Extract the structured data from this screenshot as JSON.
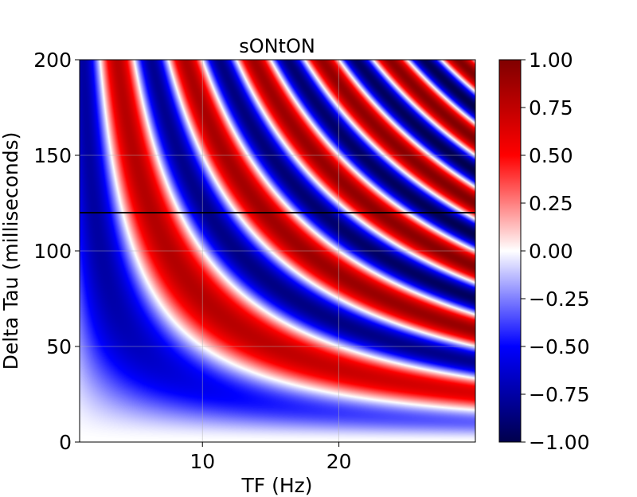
{
  "chart_data": {
    "type": "heatmap",
    "title": "sONtON",
    "xlabel": "TF (Hz)",
    "ylabel": "Delta Tau (milliseconds)",
    "xlim": [
      1,
      30
    ],
    "ylim": [
      0,
      200
    ],
    "x_ticks": [
      10,
      20
    ],
    "x_tick_labels": [
      "10",
      "20"
    ],
    "y_ticks": [
      0,
      50,
      100,
      150,
      200
    ],
    "y_tick_labels": [
      "0",
      "50",
      "100",
      "150",
      "200"
    ],
    "grid": true,
    "colormap": "seismic",
    "colorbar": {
      "vmin": -1.0,
      "vmax": 1.0,
      "ticks": [
        1.0,
        0.75,
        0.5,
        0.25,
        0.0,
        -0.25,
        -0.5,
        -0.75,
        -1.0
      ],
      "tick_labels": [
        "1.00",
        "0.75",
        "0.50",
        "0.25",
        "0.00",
        "−0.25",
        "−0.50",
        "−0.75",
        "−1.00"
      ]
    },
    "reference_line": {
      "y": 120,
      "color": "#000000"
    },
    "function": "value = -sin(2*pi*TF*DeltaTau/1000) * exp(-TF/60) with sign(cos)"
  },
  "colors": {
    "axis": "#000000",
    "grid": "#b0b0b0",
    "ref_line": "#000000"
  }
}
